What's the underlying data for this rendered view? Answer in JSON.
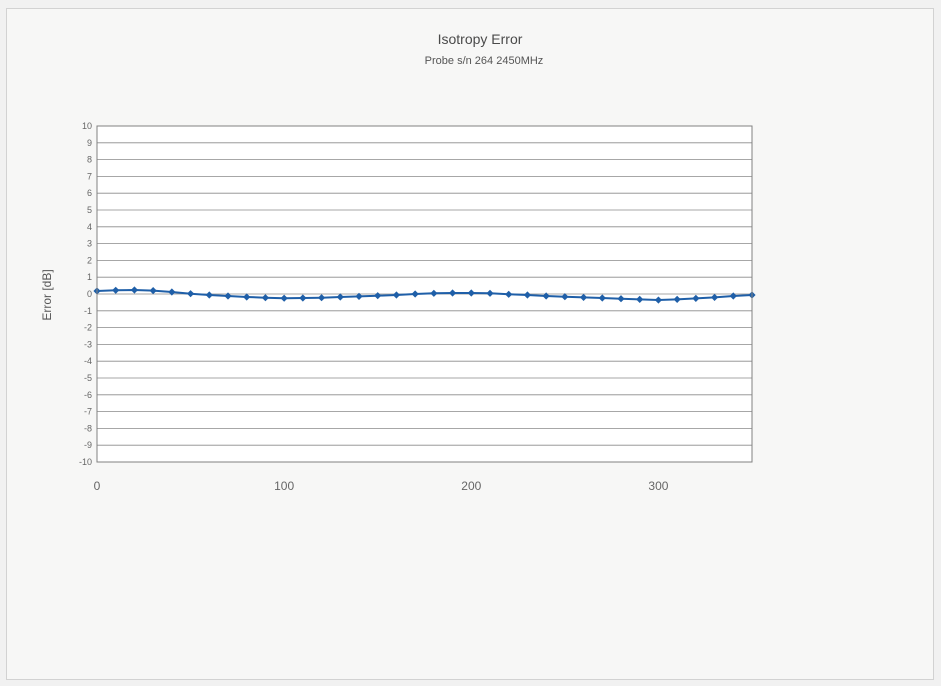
{
  "chart_data": {
    "type": "line",
    "title": "Isotropy Error",
    "subtitle": "Probe s/n 264 2450MHz",
    "xlabel": "",
    "ylabel": "Error [dB]",
    "xlim": [
      0,
      350
    ],
    "ylim": [
      -10,
      10
    ],
    "xticks": [
      "0",
      "100",
      "200",
      "300"
    ],
    "yticks": [
      "10",
      "9",
      "8",
      "7",
      "6",
      "5",
      "4",
      "3",
      "2",
      "1",
      "0",
      "-1",
      "-2",
      "-3",
      "-4",
      "-5",
      "-6",
      "-7",
      "-8",
      "-9",
      "-10"
    ],
    "grid": true,
    "legend": "none",
    "series_color": "#1f5fa8",
    "series": [
      {
        "x": [
          0,
          10,
          20,
          30,
          40,
          50,
          60,
          70,
          80,
          90,
          100,
          110,
          120,
          130,
          140,
          150,
          160,
          170,
          180,
          190,
          200,
          210,
          220,
          230,
          240,
          250,
          260,
          270,
          280,
          290,
          300,
          310,
          320,
          330,
          340,
          350
        ],
        "values": [
          0.18,
          0.22,
          0.24,
          0.2,
          0.12,
          0.02,
          -0.06,
          -0.12,
          -0.18,
          -0.22,
          -0.25,
          -0.24,
          -0.22,
          -0.18,
          -0.14,
          -0.1,
          -0.06,
          0.0,
          0.04,
          0.06,
          0.06,
          0.04,
          -0.02,
          -0.06,
          -0.12,
          -0.16,
          -0.2,
          -0.24,
          -0.28,
          -0.32,
          -0.36,
          -0.32,
          -0.26,
          -0.2,
          -0.12,
          -0.06
        ]
      }
    ]
  }
}
